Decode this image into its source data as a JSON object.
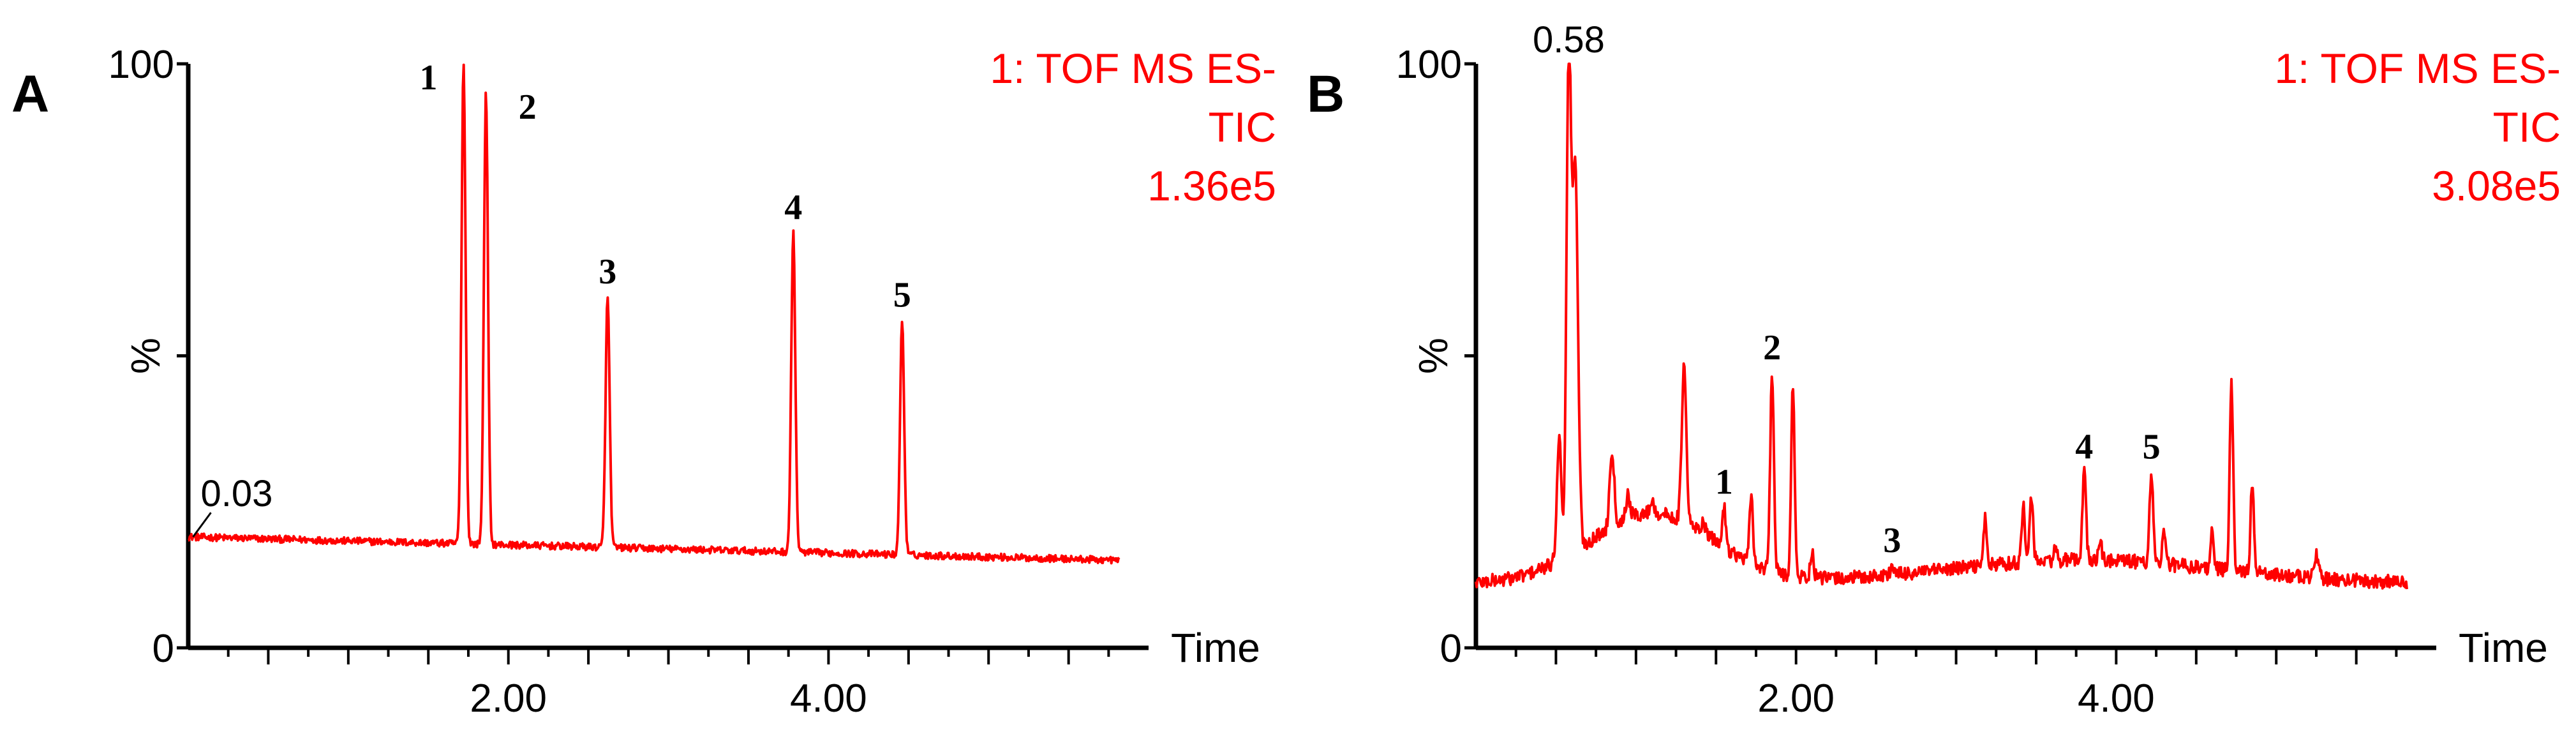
{
  "chart_data": [
    {
      "type": "line",
      "panel_label": "A",
      "header_lines": [
        "1: TOF MS ES-",
        "TIC",
        "1.36e5"
      ],
      "xlabel": "Time",
      "ylabel": "%",
      "xlim": [
        0.0,
        5.9
      ],
      "ylim": [
        0,
        100
      ],
      "x_ticks": [
        2.0,
        4.0
      ],
      "x_tick_labels": [
        "2.00",
        "4.00"
      ],
      "y_tick_labels": [
        "0",
        "100"
      ],
      "baseline_start": 19,
      "baseline_end": 15,
      "peaks": [
        {
          "label": "1",
          "x": 1.72,
          "y": 100
        },
        {
          "label": "2",
          "x": 1.86,
          "y": 95
        },
        {
          "label": "3",
          "x": 2.62,
          "y": 60
        },
        {
          "label": "4",
          "x": 3.78,
          "y": 71
        },
        {
          "label": "5",
          "x": 4.46,
          "y": 56
        }
      ],
      "time_annotation": {
        "text": "0.03",
        "x": 0.03,
        "y": 19
      }
    },
    {
      "type": "line",
      "panel_label": "B",
      "header_lines": [
        "1: TOF MS ES-",
        "TIC",
        "3.08e5"
      ],
      "xlabel": "Time",
      "ylabel": "%",
      "xlim": [
        0.0,
        5.9
      ],
      "ylim": [
        0,
        100
      ],
      "x_ticks": [
        2.0,
        4.0
      ],
      "x_tick_labels": [
        "2.00",
        "4.00"
      ],
      "y_tick_labels": [
        "0",
        "100"
      ],
      "baseline_start": 11,
      "baseline_end": 11,
      "peaks": [
        {
          "label": "1",
          "x": 1.55,
          "y": 24
        },
        {
          "label": "2",
          "x": 1.85,
          "y": 47
        },
        {
          "label": "3",
          "x": 2.6,
          "y": 14
        },
        {
          "label": "4",
          "x": 3.8,
          "y": 30
        },
        {
          "label": "5",
          "x": 4.22,
          "y": 30
        }
      ],
      "time_annotation": {
        "text": "0.58",
        "x": 0.58,
        "y": 100
      }
    }
  ]
}
